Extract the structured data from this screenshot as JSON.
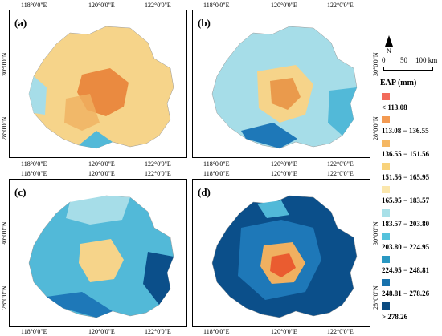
{
  "panels": [
    {
      "label": "(a)",
      "palette": [
        "#f6d48a",
        "#f0b060",
        "#ea8a40",
        "#a6dde8",
        "#52b9d8"
      ]
    },
    {
      "label": "(b)",
      "palette": [
        "#a6dde8",
        "#f6d48a",
        "#ea9a4c",
        "#52b9d8",
        "#1e78b8"
      ]
    },
    {
      "label": "(c)",
      "palette": [
        "#52b9d8",
        "#a6dde8",
        "#f6d48a",
        "#1e78b8",
        "#0b4f8a"
      ]
    },
    {
      "label": "(d)",
      "palette": [
        "#0b4f8a",
        "#1e78b8",
        "#f0b060",
        "#ea5c30",
        "#52b9d8"
      ]
    }
  ],
  "axes": {
    "top_ticks": [
      "118°0'0\"E",
      "120°0'0\"E",
      "122°0'0\"E"
    ],
    "bottom_ticks": [
      "118°0'0\"E",
      "120°0'0\"E",
      "122°0'0\"E"
    ],
    "left_ticks": [
      "30°0'0\"N",
      "28°0'0\"N"
    ],
    "right_ticks": [
      "30°0'0\"N",
      "28°0'0\"N"
    ]
  },
  "legend": {
    "north_label": "N",
    "scale": [
      "0",
      "50",
      "100 km"
    ],
    "title": "EAP (mm)",
    "classes": [
      {
        "label": "< 113.08",
        "color": "#f26b5b"
      },
      {
        "label": "113.08 − 136.55",
        "color": "#f39a52"
      },
      {
        "label": "136.55 − 151.56",
        "color": "#f5b762"
      },
      {
        "label": "151.56 − 165.95",
        "color": "#f8d27b"
      },
      {
        "label": "165.95 − 183.57",
        "color": "#fbe7ad"
      },
      {
        "label": "183.57 − 203.80",
        "color": "#a8e0e8"
      },
      {
        "label": "203.80 − 224.95",
        "color": "#55c2dc"
      },
      {
        "label": "224.95 − 248.81",
        "color": "#2a98c2"
      },
      {
        "label": "248.81 − 278.26",
        "color": "#1872ad"
      },
      {
        "label": "> 278.26",
        "color": "#0a4a80"
      }
    ]
  }
}
